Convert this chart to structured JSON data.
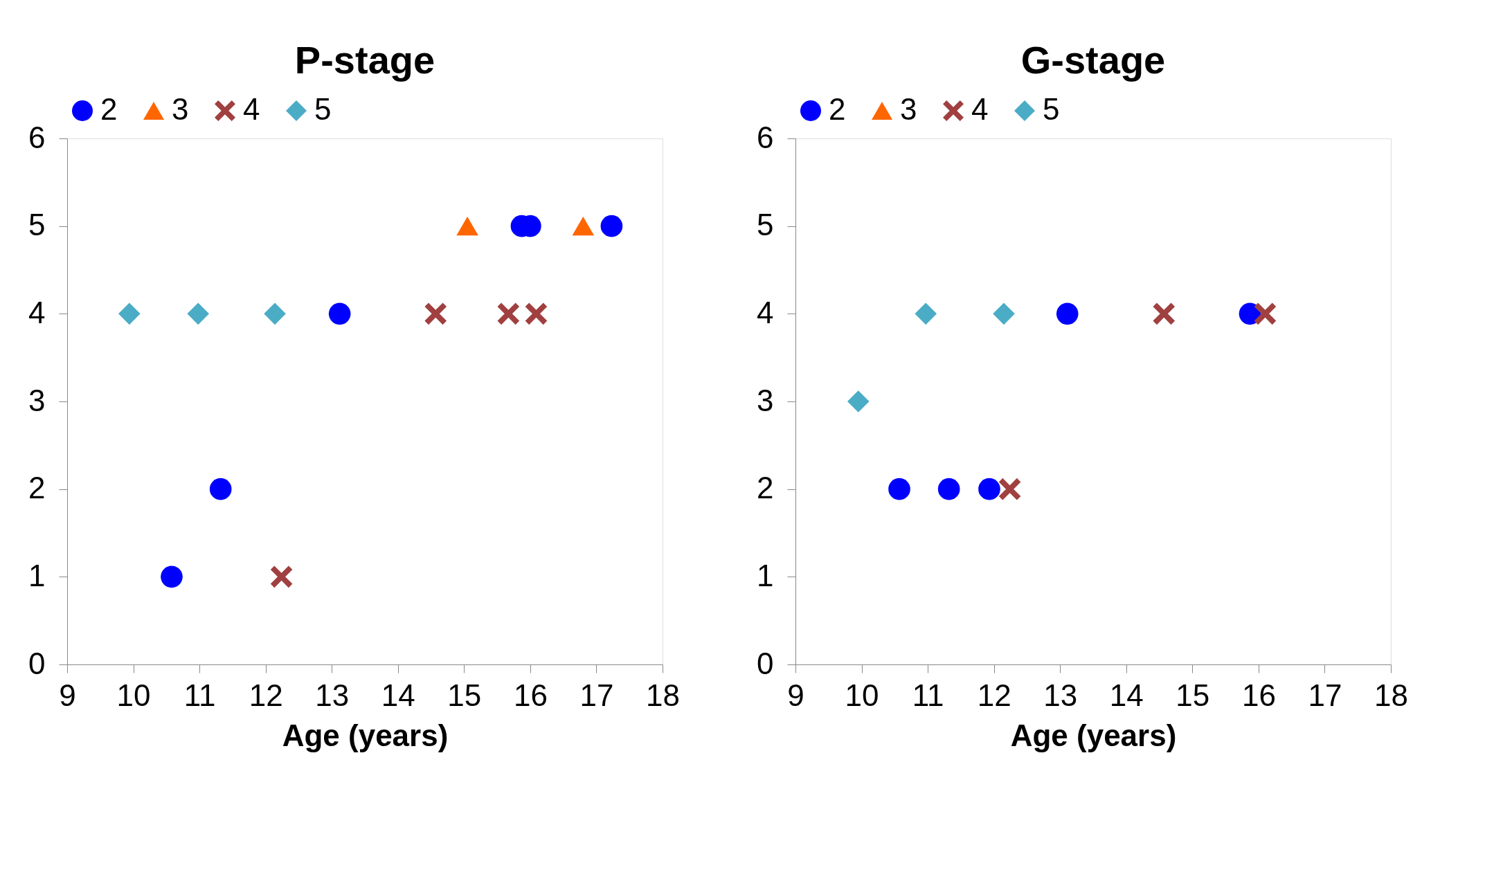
{
  "chart_data": [
    {
      "type": "scatter",
      "title": "P-stage",
      "xlabel": "Age (years)",
      "xlim": [
        9,
        18
      ],
      "xticks": [
        9,
        10,
        11,
        12,
        13,
        14,
        15,
        16,
        17,
        18
      ],
      "ylim": [
        0,
        6
      ],
      "yticks": [
        0,
        1,
        2,
        3,
        4,
        5,
        6
      ],
      "grid": false,
      "legend": "top",
      "series": [
        {
          "name": "2",
          "color": "#0000ff",
          "marker": "circle",
          "x": [
            10.58,
            11.32,
            13.12,
            15.87,
            16.0,
            17.23
          ],
          "values": [
            1,
            2,
            4,
            5,
            5,
            5
          ]
        },
        {
          "name": "3",
          "color": "#ff6600",
          "marker": "triangle",
          "x": [
            15.05,
            16.8
          ],
          "values": [
            5,
            5
          ]
        },
        {
          "name": "4",
          "color": "#a04040",
          "marker": "cross",
          "x": [
            12.24,
            14.57,
            15.67,
            16.09
          ],
          "values": [
            1,
            4,
            4,
            4
          ]
        },
        {
          "name": "5",
          "color": "#4bacc6",
          "marker": "diamond",
          "x": [
            9.94,
            10.98,
            12.14
          ],
          "values": [
            4,
            4,
            4
          ]
        }
      ]
    },
    {
      "type": "scatter",
      "title": "G-stage",
      "xlabel": "Age (years)",
      "xlim": [
        9,
        18
      ],
      "xticks": [
        9,
        10,
        11,
        12,
        13,
        14,
        15,
        16,
        17,
        18
      ],
      "ylim": [
        0,
        6
      ],
      "yticks": [
        0,
        1,
        2,
        3,
        4,
        5,
        6
      ],
      "grid": false,
      "legend": "top",
      "series": [
        {
          "name": "2",
          "color": "#0000ff",
          "marker": "circle",
          "x": [
            10.57,
            11.32,
            11.93,
            13.11,
            15.87
          ],
          "values": [
            2,
            2,
            2,
            4,
            4
          ]
        },
        {
          "name": "3",
          "color": "#ff6600",
          "marker": "triangle"
        },
        {
          "name": "4",
          "color": "#a04040",
          "marker": "cross",
          "x": [
            12.24,
            14.57,
            16.1
          ],
          "values": [
            2,
            4,
            4
          ]
        },
        {
          "name": "5",
          "color": "#4bacc6",
          "marker": "diamond",
          "x": [
            9.95,
            10.97,
            12.15
          ],
          "values": [
            3,
            4,
            4
          ]
        }
      ]
    }
  ]
}
